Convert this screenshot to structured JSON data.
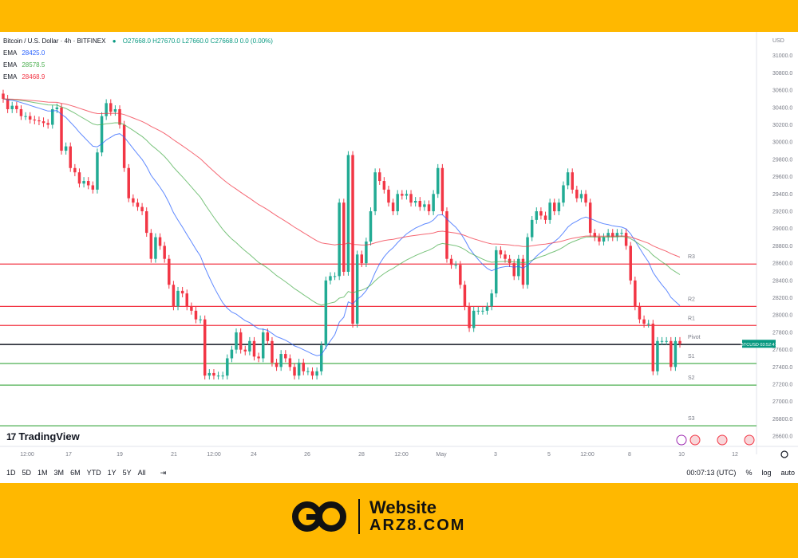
{
  "header": {
    "symbol_line": "Bitcoin / U.S. Dollar · 4h · BITFINEX",
    "ohlc": "O27668.0  H27670.0  L27660.0  C27668.0  0.0 (0.00%)",
    "ema": [
      {
        "label": "EMA",
        "value": "28425.0",
        "color": "#2962FF"
      },
      {
        "label": "EMA",
        "value": "28578.5",
        "color": "#4CAF50"
      },
      {
        "label": "EMA",
        "value": "28468.9",
        "color": "#F23645"
      }
    ]
  },
  "currency_label": "USD",
  "price_badge": "BTCUSD  03:52:47",
  "logo_text": "TradingView",
  "ranges": [
    "1D",
    "5D",
    "1M",
    "3M",
    "6M",
    "YTD",
    "1Y",
    "5Y",
    "All"
  ],
  "time_utc": "00:07:13 (UTC)",
  "scale_options": [
    "%",
    "log",
    "auto"
  ],
  "brand": {
    "line1": "Website",
    "line2": "ARZ8.COM"
  },
  "chart_data": {
    "type": "candlestick",
    "title": "Bitcoin / U.S. Dollar · 4h · BITFINEX",
    "ylim": [
      26500,
      31200
    ],
    "y_ticks": [
      26600,
      26800,
      27000,
      27200,
      27400,
      27600,
      27800,
      28000,
      28200,
      28400,
      28600,
      28800,
      29000,
      29200,
      29400,
      29600,
      29800,
      30000,
      30200,
      30400,
      30600,
      30800,
      31000
    ],
    "x_ticks": [
      "12:00",
      "17",
      "19",
      "21",
      "12:00",
      "24",
      "26",
      "28",
      "12:00",
      "May",
      "3",
      "5",
      "12:00",
      "8",
      "10",
      "12"
    ],
    "levels": [
      {
        "name": "R3",
        "value": 28590,
        "color": "#F23645"
      },
      {
        "name": "R2",
        "value": 28100,
        "color": "#F23645"
      },
      {
        "name": "R1",
        "value": 27880,
        "color": "#F23645"
      },
      {
        "name": "Pivot",
        "value": 27660,
        "color": "#131722"
      },
      {
        "name": "S1",
        "value": 27440,
        "color": "#4CAF50"
      },
      {
        "name": "S2",
        "value": 27190,
        "color": "#4CAF50"
      },
      {
        "name": "S3",
        "value": 26720,
        "color": "#4CAF50"
      }
    ],
    "current_price": 27668,
    "closes": [
      30500,
      30380,
      30420,
      30380,
      30300,
      30300,
      30260,
      30250,
      30240,
      30220,
      30200,
      30380,
      30400,
      29900,
      29950,
      29700,
      29650,
      29520,
      29550,
      29500,
      29450,
      29880,
      30300,
      30450,
      30350,
      30380,
      30200,
      29700,
      29350,
      29300,
      29250,
      29200,
      28950,
      28650,
      28900,
      28800,
      28650,
      28350,
      28100,
      28280,
      28250,
      28100,
      28050,
      27950,
      27950,
      27300,
      27330,
      27300,
      27300,
      27300,
      27500,
      27600,
      27800,
      27600,
      27580,
      27700,
      27520,
      27500,
      27800,
      27700,
      27450,
      27400,
      27550,
      27500,
      27400,
      27300,
      27450,
      27350,
      27350,
      27300,
      27350,
      27650,
      28400,
      28450,
      28450,
      29300,
      28500,
      29850,
      27900,
      28700,
      28600,
      28850,
      29200,
      29650,
      29550,
      29450,
      29300,
      29200,
      29400,
      29380,
      29400,
      29300,
      29320,
      29250,
      29280,
      29200,
      29400,
      29700,
      29200,
      28650,
      28580,
      28580,
      28350,
      28100,
      27850,
      28050,
      28050,
      28050,
      28100,
      28250,
      28750,
      28700,
      28650,
      28600,
      28450,
      28650,
      28350,
      28900,
      29100,
      29200,
      29150,
      29100,
      29300,
      29200,
      29300,
      29500,
      29650,
      29450,
      29350,
      29400,
      29300,
      28950,
      28900,
      28850,
      28900,
      28950,
      28900,
      28950,
      28950,
      28800,
      28400,
      28100,
      27950,
      27900,
      27900,
      27350,
      27700,
      27700,
      27700,
      27400,
      27700,
      27668
    ],
    "series": [
      {
        "name": "EMA",
        "value": 28425.0,
        "color": "#2962FF"
      },
      {
        "name": "EMA",
        "value": 28578.5,
        "color": "#4CAF50"
      },
      {
        "name": "EMA",
        "value": 28468.9,
        "color": "#F23645"
      }
    ]
  }
}
